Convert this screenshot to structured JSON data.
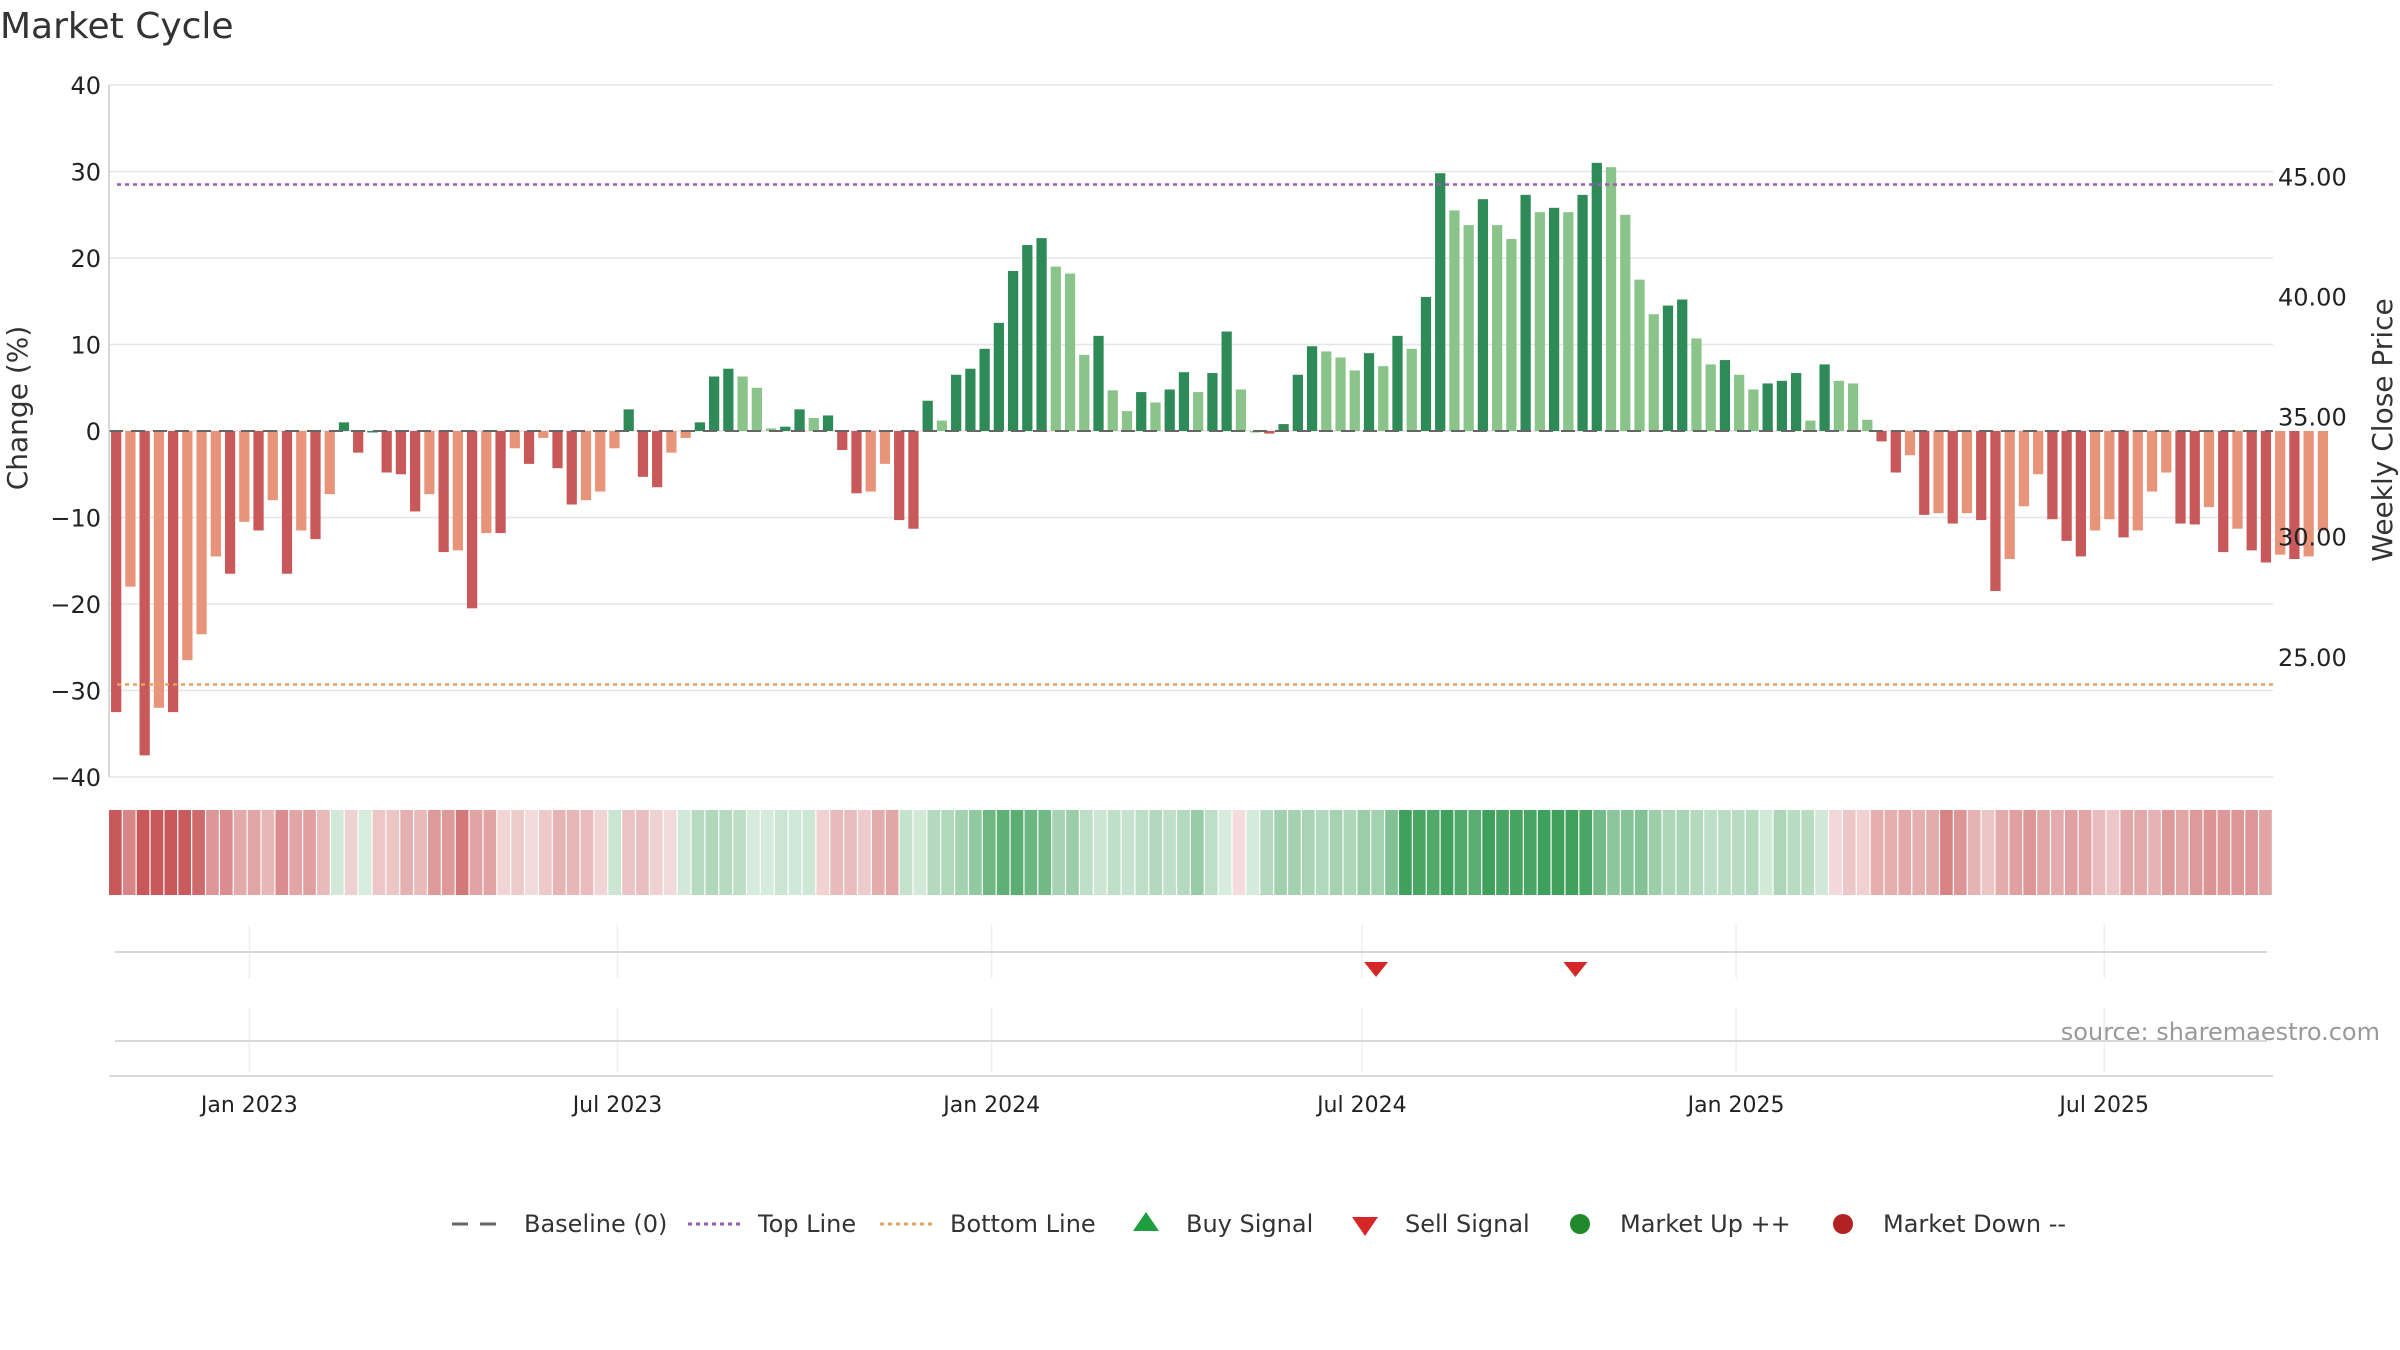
{
  "chart_data": {
    "type": "bar",
    "title": "Market Cycle",
    "ylabel_left": "Change (%)",
    "ylabel_right": "Weekly Close Price",
    "ylim_left": [
      -40,
      40
    ],
    "yticks_left": [
      "40",
      "30",
      "20",
      "10",
      "0",
      "−10",
      "−20",
      "−30",
      "−40"
    ],
    "ylim_right": [
      20.0,
      48.8
    ],
    "yticks_right": [
      "45.00",
      "40.00",
      "35.00",
      "30.00",
      "25.00"
    ],
    "x_range": [
      "2022-10-24",
      "2025-09-22"
    ],
    "x_ticks": [
      {
        "label": "Jan 2023",
        "date": "2023-01-01"
      },
      {
        "label": "Jul 2023",
        "date": "2023-07-01"
      },
      {
        "label": "Jan 2024",
        "date": "2024-01-01"
      },
      {
        "label": "Jul 2024",
        "date": "2024-07-01"
      },
      {
        "label": "Jan 2025",
        "date": "2025-01-01"
      },
      {
        "label": "Jul 2025",
        "date": "2025-07-01"
      }
    ],
    "week_start": "2022-10-24",
    "top_line": 28.5,
    "bottom_line": -29.3,
    "values": [
      -32.5,
      -18,
      -37.5,
      -32,
      -32.5,
      -26.5,
      -23.5,
      -14.5,
      -16.5,
      -10.5,
      -11.5,
      -8,
      -16.5,
      -11.5,
      -12.5,
      -7.3,
      1,
      -2.5,
      0,
      -4.8,
      -5,
      -9.3,
      -7.3,
      -14,
      -13.8,
      -20.5,
      -11.8,
      -11.8,
      -2,
      -3.8,
      -0.8,
      -4.3,
      -8.5,
      -8,
      -7,
      -2,
      2.5,
      -5.3,
      -6.5,
      -2.5,
      -0.8,
      1,
      6.3,
      7.2,
      6.3,
      5,
      0.3,
      0.5,
      2.5,
      1.5,
      1.8,
      -2.2,
      -7.2,
      -7,
      -3.8,
      -10.3,
      -11.3,
      3.5,
      1.2,
      6.5,
      7.2,
      9.5,
      12.5,
      18.5,
      21.5,
      22.3,
      19,
      18.2,
      8.8,
      11,
      4.7,
      2.3,
      4.5,
      3.3,
      4.8,
      6.8,
      4.5,
      6.7,
      11.5,
      4.8,
      0,
      -0.3,
      0.8,
      6.5,
      9.8,
      9.2,
      8.5,
      7,
      9,
      7.5,
      11,
      9.5,
      15.5,
      29.8,
      25.5,
      23.8,
      26.8,
      23.8,
      22.2,
      27.3,
      25.3,
      25.8,
      25.3,
      27.3,
      31,
      30.5,
      25,
      17.5,
      13.5,
      14.5,
      15.2,
      10.7,
      7.7,
      8.2,
      6.5,
      4.8,
      5.5,
      5.8,
      6.7,
      1.2,
      7.7,
      5.8,
      5.5,
      1.3,
      -1.2,
      -4.8,
      -2.8,
      -9.7,
      -9.5,
      -10.7,
      -9.5,
      -10.3,
      -18.5,
      -14.8,
      -8.7,
      -5,
      -10.2,
      -12.7,
      -14.5,
      -11.5,
      -10.2,
      -12.3,
      -11.5,
      -7,
      -4.8,
      -10.7,
      -10.8,
      -8.8,
      -14,
      -11.3,
      -13.8,
      -15.2,
      -14.3,
      -14.8,
      -14.5,
      -11.5
    ],
    "bar_colors": {
      "pos_dark": "#2e8b57",
      "pos_light": "#8bc48a",
      "neg_dark": "#c9585a",
      "neg_light": "#e8947a"
    },
    "heat_colors": {
      "neg_base": "#c9585a",
      "pos_base": "#3ea05a"
    },
    "signals": {
      "sell": [
        {
          "date": "2024-07-08"
        },
        {
          "date": "2024-10-14"
        }
      ],
      "buy": []
    },
    "legend": [
      {
        "label": "Baseline (0)",
        "symbol": "dash",
        "color": "#666666"
      },
      {
        "label": "Top Line",
        "symbol": "dotted",
        "color": "#9b59b6"
      },
      {
        "label": "Bottom Line",
        "symbol": "dotted",
        "color": "#e8a060"
      },
      {
        "label": "Buy Signal",
        "symbol": "triangle-up",
        "color": "#1e9e3e"
      },
      {
        "label": "Sell Signal",
        "symbol": "triangle-down",
        "color": "#d62728"
      },
      {
        "label": "Market Up ++",
        "symbol": "circle",
        "color": "#1f8a2a"
      },
      {
        "label": "Market Down --",
        "symbol": "circle",
        "color": "#b22222"
      }
    ],
    "source": "source: sharemaestro.com"
  }
}
